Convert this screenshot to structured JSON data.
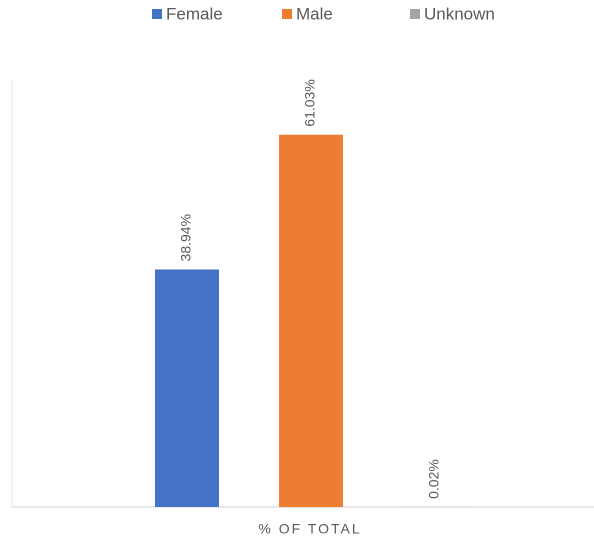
{
  "chart_data": {
    "type": "bar",
    "categories": [
      "% OF TOTAL"
    ],
    "series": [
      {
        "name": "Female",
        "color": "#4472c4",
        "values": [
          38.94
        ],
        "value_labels": [
          "38.94%"
        ]
      },
      {
        "name": "Male",
        "color": "#ed7d31",
        "values": [
          61.03
        ],
        "value_labels": [
          "61.03%"
        ]
      },
      {
        "name": "Unknown",
        "color": "#a5a5a5",
        "values": [
          0.02
        ],
        "value_labels": [
          "0.02%"
        ]
      }
    ],
    "ylim": [
      0,
      70
    ],
    "legend": "top"
  }
}
